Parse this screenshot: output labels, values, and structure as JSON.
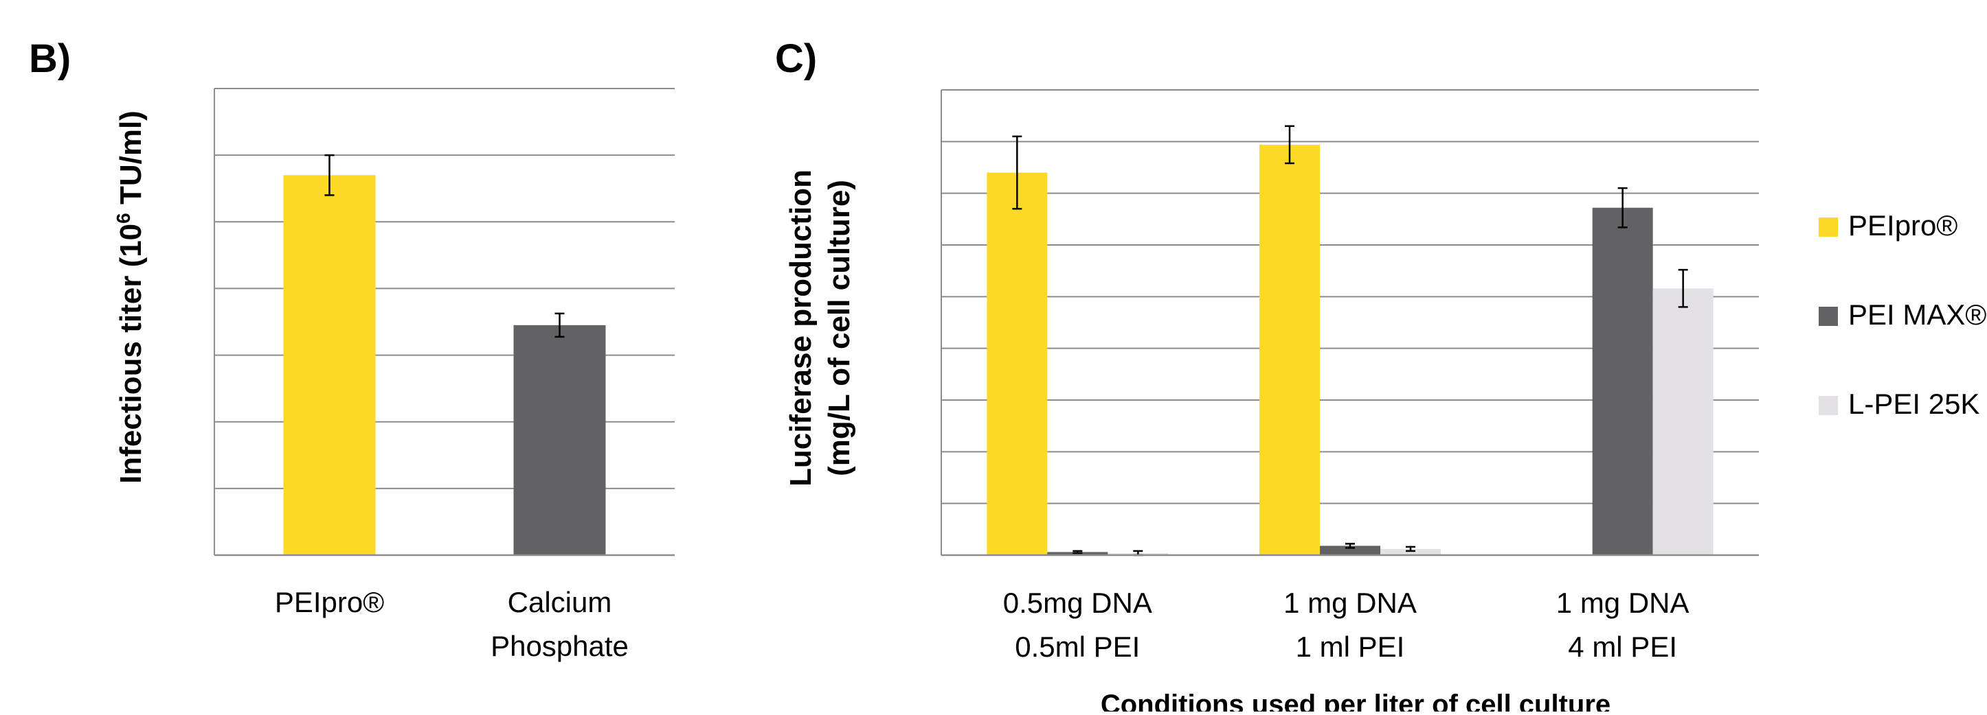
{
  "panel_labels": [
    "B)",
    "C)"
  ],
  "colors": {
    "PEIpro": "#FDD927",
    "PEIMAX": "#626265",
    "LPEI": "#E3E1E6",
    "grid": "#8C8C8C",
    "axis": "#8C8C8C",
    "text": "#000000"
  },
  "chart_data": [
    {
      "type": "bar",
      "panel": "B)",
      "categories": [
        "PEIpro®",
        "Calcium|Phosphate"
      ],
      "values": [
        11.4,
        6.9
      ],
      "errors": [
        0.6,
        0.35
      ],
      "bar_colors": [
        "#FDD927",
        "#626265"
      ],
      "ylabel": "Infectious titer (10|6| TU/ml)",
      "ylim": [
        0,
        14
      ],
      "yticks": [
        "0",
        "2",
        "4",
        "6",
        "8",
        "10",
        "12",
        "14"
      ],
      "grid": true
    },
    {
      "type": "bar",
      "panel": "C)",
      "categories": [
        "0.5mg DNA|0.5ml PEI",
        "1 mg DNA|1 ml PEI",
        "1 mg DNA|4 ml PEI"
      ],
      "series": [
        {
          "name": "PEIpro®",
          "values": [
            3.7,
            3.97,
            0.0
          ],
          "errors": [
            0.35,
            0.18,
            0.0
          ],
          "color": "#FDD927"
        },
        {
          "name": "PEI MAX®",
          "values": [
            0.03,
            0.09,
            3.36
          ],
          "errors": [
            0.01,
            0.02,
            0.19
          ],
          "color": "#626265"
        },
        {
          "name": "L-PEI 25K",
          "values": [
            0.02,
            0.06,
            2.58
          ],
          "errors": [
            0.02,
            0.02,
            0.18
          ],
          "color": "#E3E1E6"
        }
      ],
      "ylabel": "Luciferase production|(mg/L of cell culture)",
      "xlabel": "Conditions used per liter of cell culture",
      "ylim": [
        0,
        4.5
      ],
      "yticks": [
        "0",
        "0.5",
        "1",
        "1.5",
        "2",
        "2.5",
        "3",
        "3.5",
        "4",
        "4.5"
      ],
      "grid": true,
      "legend_position": "right"
    }
  ]
}
